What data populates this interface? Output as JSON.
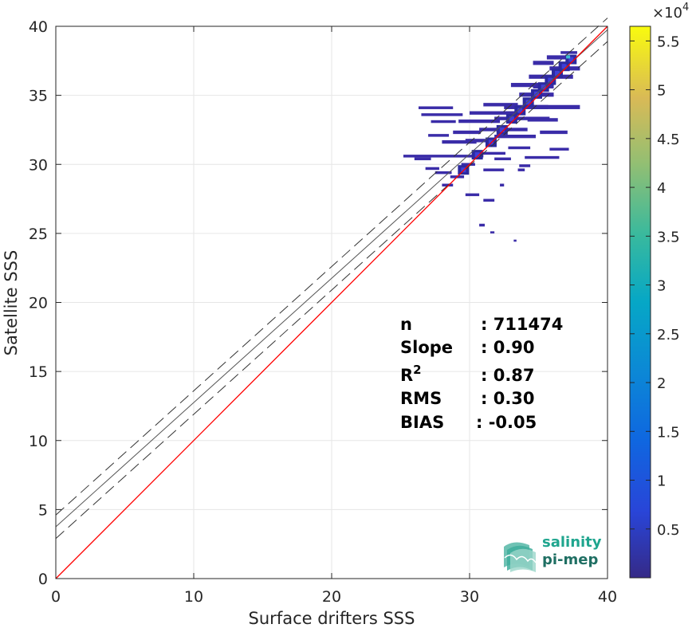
{
  "chart_data": {
    "type": "heatmap",
    "title": "",
    "xlabel": "Surface drifters SSS",
    "ylabel": "Satellite SSS",
    "xlim": [
      0,
      40
    ],
    "ylim": [
      0,
      40
    ],
    "xticks": [
      "0",
      "10",
      "20",
      "30",
      "40"
    ],
    "yticks": [
      "0",
      "5",
      "10",
      "15",
      "20",
      "25",
      "30",
      "35",
      "40"
    ],
    "grid": true,
    "colorbar": {
      "colormap": "parula",
      "range": [
        0,
        56500
      ],
      "multiplier_base": "×10",
      "multiplier_exponent": "4",
      "ticks": [
        "0.5",
        "1",
        "1.5",
        "2",
        "2.5",
        "3",
        "3.5",
        "4",
        "4.5",
        "5",
        "5.5"
      ],
      "tick_values": [
        0.5,
        1,
        1.5,
        2,
        2.5,
        3,
        3.5,
        4,
        4.5,
        5,
        5.5
      ]
    },
    "lines": {
      "identity": {
        "slope": 1.0,
        "intercept": 0.0,
        "color": "#ff0000"
      },
      "regression": {
        "slope": 0.9,
        "intercept": 3.75,
        "color": "#555555"
      },
      "confidence_upper": {
        "slope": 0.9,
        "intercept": 4.6,
        "dash": true
      },
      "confidence_lower": {
        "slope": 0.9,
        "intercept": 2.9,
        "dash": true
      }
    },
    "density_cells": [
      [
        25.2,
        30.5,
        5.8,
        0.2
      ],
      [
        26.0,
        30.3,
        1.2,
        0.2
      ],
      [
        26.8,
        29.6,
        1.0,
        0.2
      ],
      [
        27.5,
        29.3,
        1.2,
        0.2
      ],
      [
        28.0,
        28.4,
        0.8,
        0.2
      ],
      [
        28.6,
        29.0,
        1.0,
        0.2
      ],
      [
        29.4,
        29.9,
        1.0,
        0.2
      ],
      [
        29.7,
        27.7,
        1.0,
        0.2
      ],
      [
        31.0,
        27.3,
        0.8,
        0.2
      ],
      [
        30.7,
        25.5,
        0.4,
        0.2
      ],
      [
        31.5,
        25.0,
        0.3,
        0.15
      ],
      [
        33.2,
        24.4,
        0.2,
        0.15
      ],
      [
        32.2,
        28.4,
        0.3,
        0.2
      ],
      [
        31.0,
        29.5,
        1.5,
        0.2
      ],
      [
        31.8,
        30.3,
        1.2,
        0.2
      ],
      [
        33.6,
        29.8,
        0.8,
        0.2
      ],
      [
        34.0,
        30.4,
        2.5,
        0.2
      ],
      [
        33.5,
        29.5,
        0.5,
        0.2
      ],
      [
        27.0,
        32.0,
        1.5,
        0.2
      ],
      [
        26.5,
        33.5,
        3.0,
        0.2
      ],
      [
        26.3,
        34.0,
        2.5,
        0.2
      ],
      [
        27.2,
        33.0,
        1.8,
        0.2
      ],
      [
        28.0,
        31.5,
        2.5,
        0.25
      ],
      [
        28.8,
        32.2,
        2.0,
        0.25
      ],
      [
        29.7,
        31.6,
        1.5,
        0.25
      ],
      [
        29.2,
        33.0,
        3.0,
        0.25
      ],
      [
        30.0,
        33.6,
        3.5,
        0.25
      ],
      [
        30.7,
        32.4,
        3.5,
        0.25
      ],
      [
        31.8,
        31.9,
        3.0,
        0.25
      ],
      [
        31.8,
        33.2,
        4.0,
        0.25
      ],
      [
        31.0,
        34.2,
        2.5,
        0.25
      ],
      [
        32.5,
        34.0,
        3.2,
        0.3
      ],
      [
        33.6,
        34.9,
        2.5,
        0.3
      ],
      [
        34.5,
        34.0,
        3.5,
        0.3
      ],
      [
        33.0,
        35.6,
        3.0,
        0.3
      ],
      [
        34.3,
        36.2,
        3.2,
        0.3
      ],
      [
        35.8,
        36.8,
        2.2,
        0.3
      ],
      [
        34.6,
        37.2,
        1.5,
        0.3
      ],
      [
        35.6,
        37.6,
        2.0,
        0.3
      ],
      [
        36.6,
        38.0,
        1.2,
        0.2
      ],
      [
        34.2,
        33.1,
        2.2,
        0.25
      ],
      [
        35.1,
        32.2,
        2.0,
        0.25
      ],
      [
        35.8,
        31.0,
        1.4,
        0.2
      ],
      [
        30.8,
        30.7,
        1.8,
        0.2
      ],
      [
        32.8,
        31.1,
        1.6,
        0.2
      ],
      [
        34.6,
        35.5,
        1.5,
        0.3
      ]
    ],
    "diag_core": [
      [
        29.5,
        29.6
      ],
      [
        30.5,
        30.7
      ],
      [
        31.5,
        31.6
      ],
      [
        32.3,
        32.5
      ],
      [
        33.0,
        33.3
      ],
      [
        33.6,
        33.9
      ],
      [
        34.2,
        34.5
      ],
      [
        34.8,
        35.1
      ],
      [
        35.3,
        35.6
      ],
      [
        35.8,
        36.1
      ],
      [
        36.3,
        36.6
      ],
      [
        36.8,
        37.1
      ],
      [
        37.3,
        37.6
      ]
    ],
    "stats": [
      {
        "label": "n",
        "value": ": 711474",
        "sup": ""
      },
      {
        "label": "Slope",
        "value": ": 0.90",
        "sup": ""
      },
      {
        "label": "R",
        "value": ": 0.87",
        "sup": "2"
      },
      {
        "label": "RMS",
        "value": ": 0.30",
        "sup": ""
      },
      {
        "label": "BIAS",
        "value": ": -0.05",
        "sup": ""
      }
    ]
  },
  "logo": {
    "line1": "salinity",
    "line2": "pi-mep"
  }
}
